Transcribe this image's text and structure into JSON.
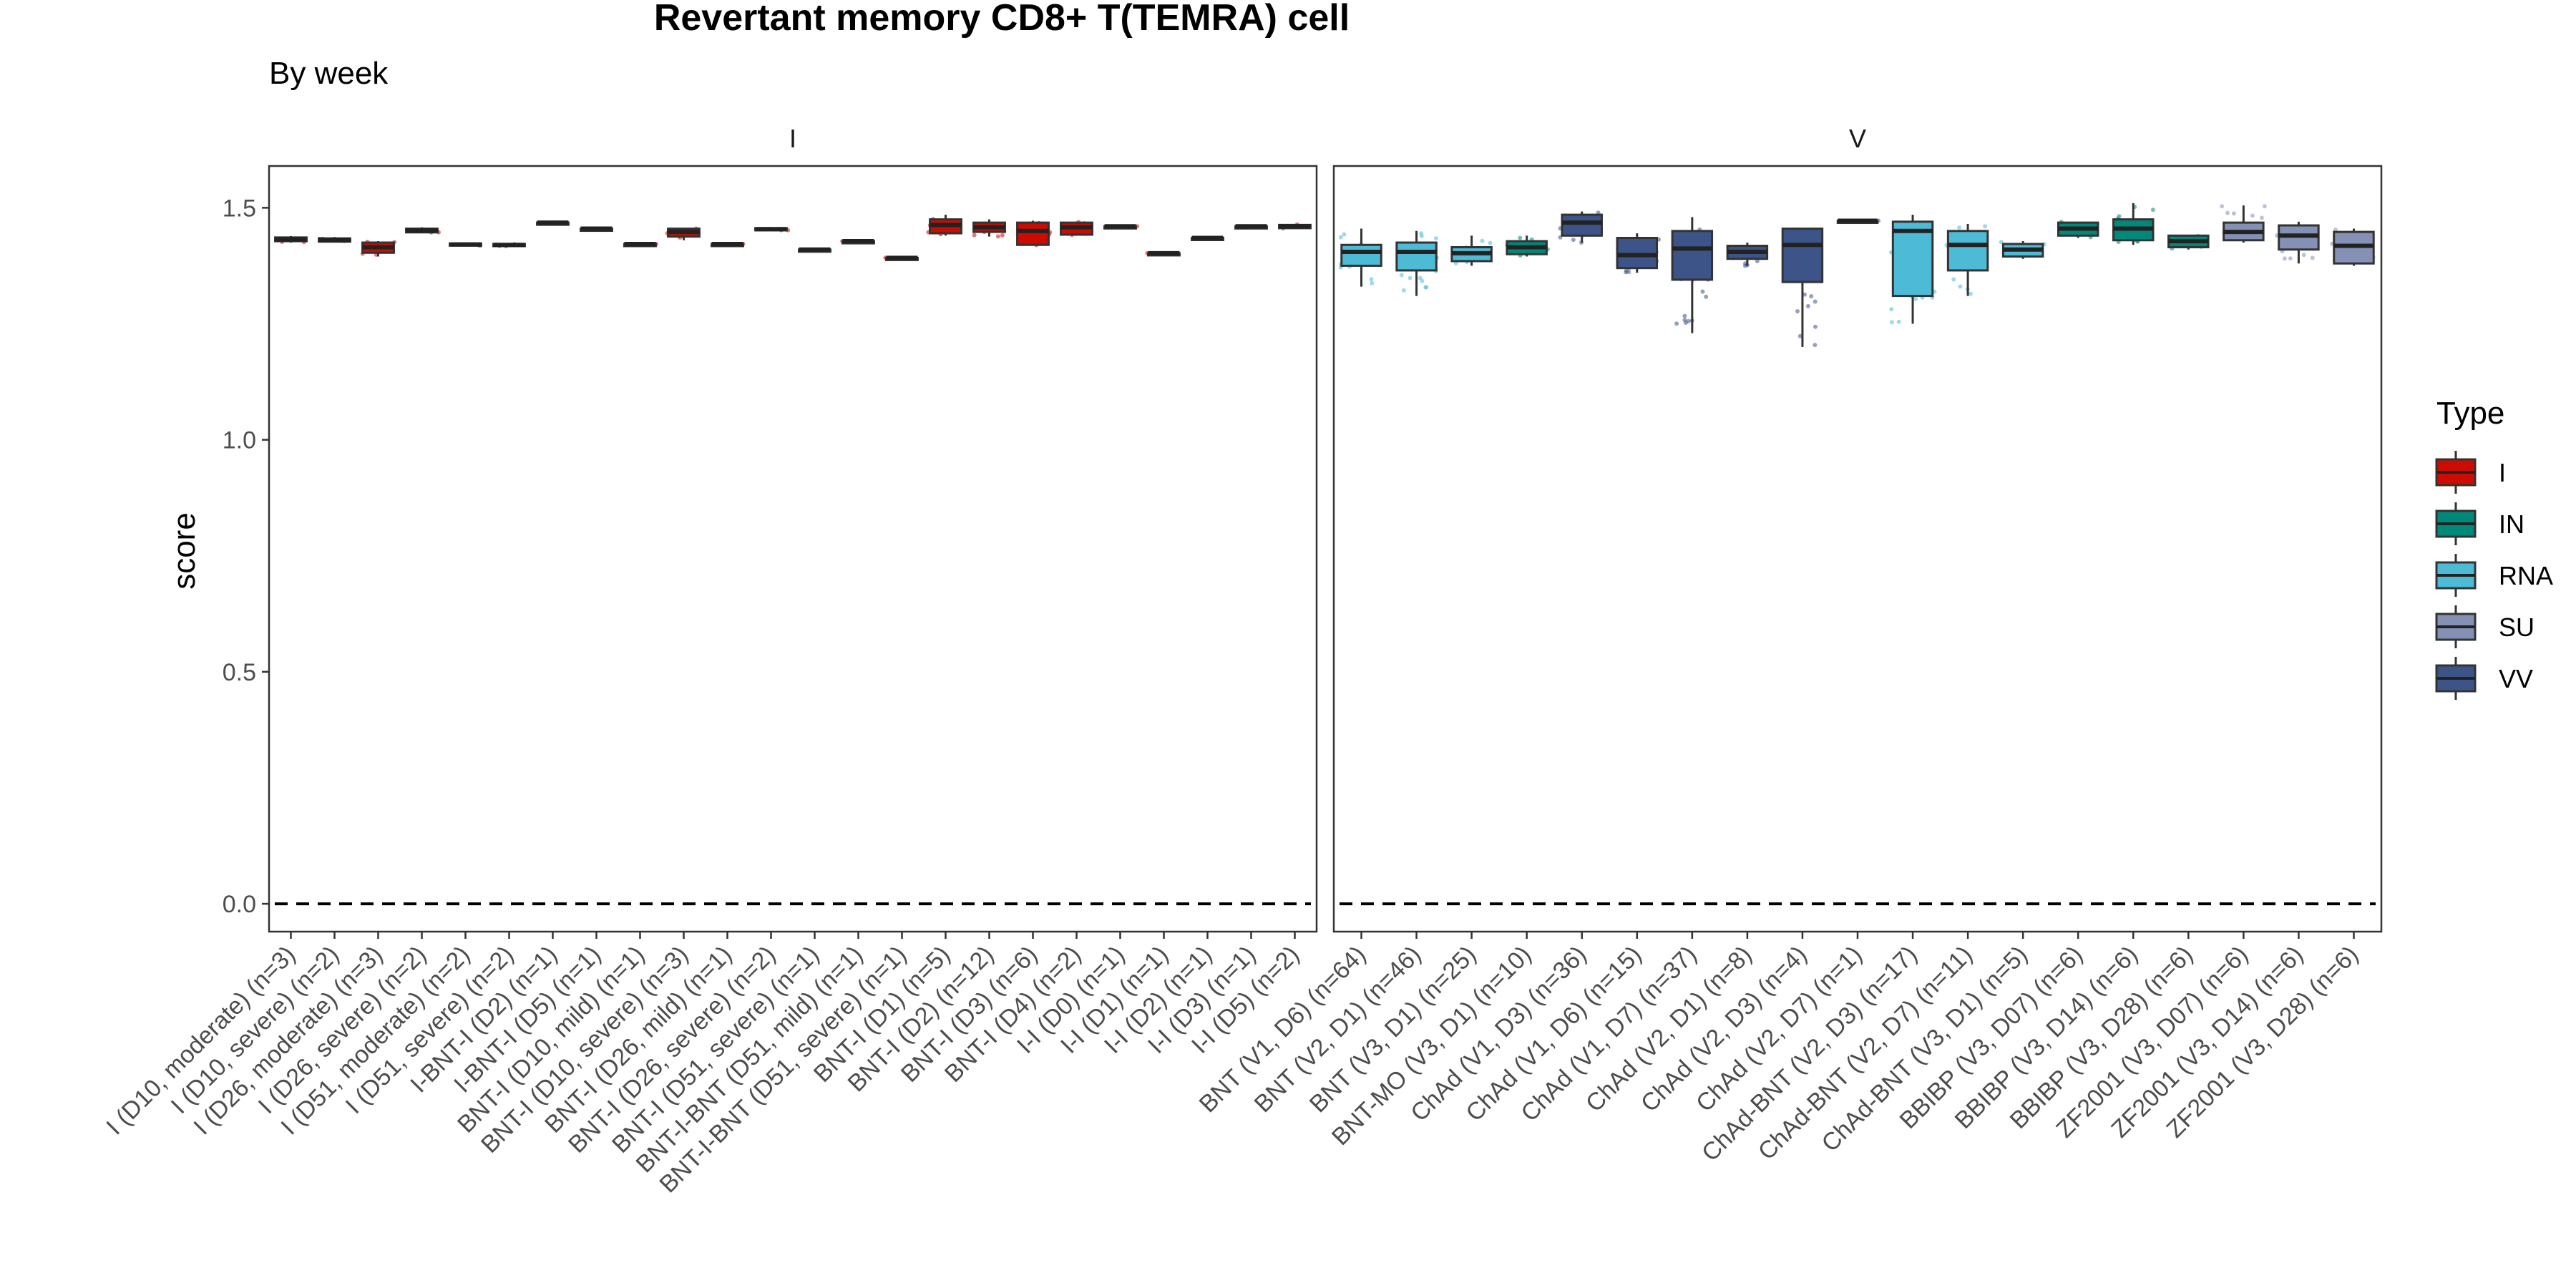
{
  "chart_data": {
    "type": "box",
    "title": "Revertant memory CD8+ T(TEMRA) cell",
    "subtitle": "By week",
    "ylabel": "score",
    "ylim": [
      -0.06,
      1.59
    ],
    "yticks": [
      0.0,
      0.5,
      1.0,
      1.5
    ],
    "yticklabels": [
      "0.0",
      "0.5",
      "1.0",
      "1.5"
    ],
    "reference_line": {
      "y": 0.0,
      "style": "dashed"
    },
    "grid": false,
    "legend": {
      "title": "Type",
      "position": "right",
      "entries": [
        {
          "label": "I",
          "color": "#CC0C00"
        },
        {
          "label": "IN",
          "color": "#00897B"
        },
        {
          "label": "RNA",
          "color": "#4DBBD5"
        },
        {
          "label": "SU",
          "color": "#8491B4"
        },
        {
          "label": "VV",
          "color": "#3C5488"
        }
      ]
    },
    "panels": [
      {
        "strip": "I",
        "groups": [
          {
            "label": "I (D10, moderate) (n=3)",
            "type": "I",
            "q1": 1.428,
            "median": 1.432,
            "q3": 1.436,
            "lo": 1.425,
            "hi": 1.439
          },
          {
            "label": "I (D10, severe) (n=2)",
            "type": "I",
            "q1": 1.427,
            "median": 1.431,
            "q3": 1.434,
            "lo": 1.425,
            "hi": 1.437
          },
          {
            "label": "I (D26, moderate) (n=3)",
            "type": "I",
            "q1": 1.403,
            "median": 1.415,
            "q3": 1.425,
            "lo": 1.395,
            "hi": 1.428
          },
          {
            "label": "I (D26, severe) (n=2)",
            "type": "I",
            "q1": 1.447,
            "median": 1.451,
            "q3": 1.455,
            "lo": 1.445,
            "hi": 1.458
          },
          {
            "label": "I (D51, moderate) (n=2)",
            "type": "I",
            "q1": 1.419,
            "median": 1.421,
            "q3": 1.423,
            "lo": 1.418,
            "hi": 1.424
          },
          {
            "label": "I (D51, severe) (n=2)",
            "type": "I",
            "q1": 1.418,
            "median": 1.42,
            "q3": 1.422,
            "lo": 1.417,
            "hi": 1.423
          },
          {
            "label": "I-BNT-I (D2) (n=1)",
            "type": "I",
            "q1": 1.468,
            "median": 1.468,
            "q3": 1.468,
            "lo": 1.468,
            "hi": 1.468
          },
          {
            "label": "I-BNT-I (D5) (n=1)",
            "type": "I",
            "q1": 1.455,
            "median": 1.455,
            "q3": 1.455,
            "lo": 1.455,
            "hi": 1.455
          },
          {
            "label": "BNT-I (D10, mild) (n=1)",
            "type": "I",
            "q1": 1.422,
            "median": 1.422,
            "q3": 1.422,
            "lo": 1.422,
            "hi": 1.422
          },
          {
            "label": "BNT-I (D10, severe) (n=3)",
            "type": "I",
            "q1": 1.438,
            "median": 1.448,
            "q3": 1.455,
            "lo": 1.43,
            "hi": 1.457
          },
          {
            "label": "BNT-I (D26, mild) (n=1)",
            "type": "I",
            "q1": 1.422,
            "median": 1.422,
            "q3": 1.422,
            "lo": 1.422,
            "hi": 1.422
          },
          {
            "label": "BNT-I (D26, severe) (n=2)",
            "type": "I",
            "q1": 1.452,
            "median": 1.454,
            "q3": 1.456,
            "lo": 1.451,
            "hi": 1.457
          },
          {
            "label": "BNT-I (D51, severe) (n=1)",
            "type": "I",
            "q1": 1.41,
            "median": 1.41,
            "q3": 1.41,
            "lo": 1.41,
            "hi": 1.41
          },
          {
            "label": "BNT-I-BNT (D51, mild) (n=1)",
            "type": "I",
            "q1": 1.428,
            "median": 1.428,
            "q3": 1.428,
            "lo": 1.428,
            "hi": 1.428
          },
          {
            "label": "BNT-I-BNT (D51, severe) (n=1)",
            "type": "I",
            "q1": 1.392,
            "median": 1.392,
            "q3": 1.392,
            "lo": 1.392,
            "hi": 1.392
          },
          {
            "label": "BNT-I (D1) (n=5)",
            "type": "I",
            "q1": 1.445,
            "median": 1.463,
            "q3": 1.475,
            "lo": 1.44,
            "hi": 1.485
          },
          {
            "label": "BNT-I (D2) (n=12)",
            "type": "I",
            "q1": 1.448,
            "median": 1.458,
            "q3": 1.468,
            "lo": 1.438,
            "hi": 1.475
          },
          {
            "label": "BNT-I (D3) (n=6)",
            "type": "I",
            "q1": 1.42,
            "median": 1.45,
            "q3": 1.468,
            "lo": 1.418,
            "hi": 1.472
          },
          {
            "label": "BNT-I (D4) (n=2)",
            "type": "I",
            "q1": 1.442,
            "median": 1.458,
            "q3": 1.468,
            "lo": 1.44,
            "hi": 1.47
          },
          {
            "label": "I-I (D0) (n=1)",
            "type": "I",
            "q1": 1.46,
            "median": 1.46,
            "q3": 1.46,
            "lo": 1.46,
            "hi": 1.46
          },
          {
            "label": "I-I (D1) (n=1)",
            "type": "I",
            "q1": 1.402,
            "median": 1.402,
            "q3": 1.402,
            "lo": 1.402,
            "hi": 1.402
          },
          {
            "label": "I-I (D2) (n=1)",
            "type": "I",
            "q1": 1.435,
            "median": 1.435,
            "q3": 1.435,
            "lo": 1.435,
            "hi": 1.435
          },
          {
            "label": "I-I (D3) (n=1)",
            "type": "I",
            "q1": 1.46,
            "median": 1.46,
            "q3": 1.46,
            "lo": 1.46,
            "hi": 1.46
          },
          {
            "label": "I-I (D5) (n=2)",
            "type": "I",
            "q1": 1.456,
            "median": 1.46,
            "q3": 1.463,
            "lo": 1.455,
            "hi": 1.465
          }
        ]
      },
      {
        "strip": "V",
        "groups": [
          {
            "label": "BNT (V1, D6) (n=64)",
            "type": "RNA",
            "q1": 1.375,
            "median": 1.405,
            "q3": 1.42,
            "lo": 1.33,
            "hi": 1.455
          },
          {
            "label": "BNT (V2, D1) (n=46)",
            "type": "RNA",
            "q1": 1.365,
            "median": 1.405,
            "q3": 1.425,
            "lo": 1.31,
            "hi": 1.45
          },
          {
            "label": "BNT (V3, D1) (n=25)",
            "type": "RNA",
            "q1": 1.385,
            "median": 1.402,
            "q3": 1.415,
            "lo": 1.375,
            "hi": 1.44
          },
          {
            "label": "BNT-MO (V3, D1) (n=10)",
            "type": "IN",
            "q1": 1.4,
            "median": 1.415,
            "q3": 1.428,
            "lo": 1.395,
            "hi": 1.44
          },
          {
            "label": "ChAd (V1, D3) (n=36)",
            "type": "VV",
            "q1": 1.44,
            "median": 1.468,
            "q3": 1.485,
            "lo": 1.425,
            "hi": 1.492
          },
          {
            "label": "ChAd (V1, D6) (n=15)",
            "type": "VV",
            "q1": 1.37,
            "median": 1.398,
            "q3": 1.435,
            "lo": 1.36,
            "hi": 1.445
          },
          {
            "label": "ChAd (V1, D7) (n=37)",
            "type": "VV",
            "q1": 1.345,
            "median": 1.412,
            "q3": 1.45,
            "lo": 1.23,
            "hi": 1.48
          },
          {
            "label": "ChAd (V2, D1) (n=8)",
            "type": "VV",
            "q1": 1.39,
            "median": 1.405,
            "q3": 1.418,
            "lo": 1.375,
            "hi": 1.425
          },
          {
            "label": "ChAd (V2, D3) (n=4)",
            "type": "VV",
            "q1": 1.34,
            "median": 1.42,
            "q3": 1.455,
            "lo": 1.2,
            "hi": 1.455
          },
          {
            "label": "ChAd (V2, D7) (n=1)",
            "type": "VV",
            "q1": 1.472,
            "median": 1.472,
            "q3": 1.472,
            "lo": 1.472,
            "hi": 1.472
          },
          {
            "label": "ChAd-BNT (V2, D3) (n=17)",
            "type": "RNA",
            "q1": 1.31,
            "median": 1.45,
            "q3": 1.47,
            "lo": 1.25,
            "hi": 1.485
          },
          {
            "label": "ChAd-BNT (V2, D7) (n=11)",
            "type": "RNA",
            "q1": 1.365,
            "median": 1.42,
            "q3": 1.45,
            "lo": 1.31,
            "hi": 1.465
          },
          {
            "label": "ChAd-BNT (V3, D1) (n=5)",
            "type": "RNA",
            "q1": 1.395,
            "median": 1.41,
            "q3": 1.422,
            "lo": 1.39,
            "hi": 1.428
          },
          {
            "label": "BBIBP (V3, D07) (n=6)",
            "type": "IN",
            "q1": 1.44,
            "median": 1.455,
            "q3": 1.468,
            "lo": 1.435,
            "hi": 1.47
          },
          {
            "label": "BBIBP (V3, D14) (n=6)",
            "type": "IN",
            "q1": 1.43,
            "median": 1.455,
            "q3": 1.475,
            "lo": 1.42,
            "hi": 1.51
          },
          {
            "label": "BBIBP (V3, D28) (n=6)",
            "type": "IN",
            "q1": 1.415,
            "median": 1.428,
            "q3": 1.44,
            "lo": 1.41,
            "hi": 1.442
          },
          {
            "label": "ZF2001 (V3, D07) (n=6)",
            "type": "SU",
            "q1": 1.43,
            "median": 1.448,
            "q3": 1.468,
            "lo": 1.425,
            "hi": 1.505
          },
          {
            "label": "ZF2001 (V3, D14) (n=6)",
            "type": "SU",
            "q1": 1.41,
            "median": 1.44,
            "q3": 1.462,
            "lo": 1.38,
            "hi": 1.47
          },
          {
            "label": "ZF2001 (V3, D28) (n=6)",
            "type": "SU",
            "q1": 1.38,
            "median": 1.418,
            "q3": 1.448,
            "lo": 1.375,
            "hi": 1.455
          }
        ]
      }
    ]
  }
}
